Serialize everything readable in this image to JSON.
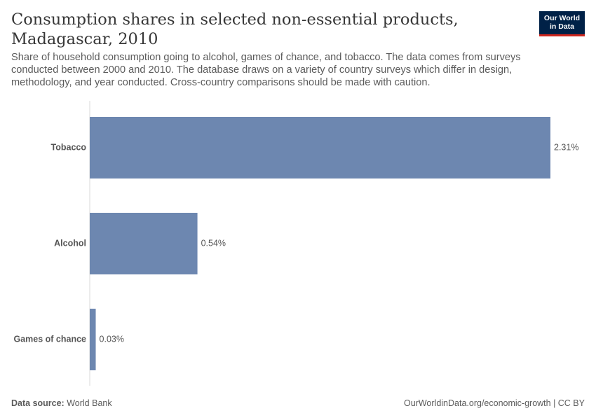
{
  "header": {
    "title": "Consumption shares in selected non-essential products, Madagascar, 2010",
    "subtitle": "Share of household consumption going to alcohol, games of chance, and tobacco. The data comes from surveys conducted between 2000 and 2010. The database draws on a variety of country surveys which differ in design, methodology, and year conducted. Cross-country comparisons should be made with caution.",
    "logo_line1": "Our World",
    "logo_line2": "in Data"
  },
  "footer": {
    "source_label": "Data source:",
    "source_value": "World Bank",
    "url": "OurWorldinData.org/economic-growth | CC BY"
  },
  "colors": {
    "bar": "#6d87b0",
    "axis": "#d8d8d8",
    "logo_bg": "#002147",
    "logo_accent": "#ce261e"
  },
  "chart_data": {
    "type": "bar",
    "orientation": "horizontal",
    "categories": [
      "Tobacco",
      "Alcohol",
      "Games of chance"
    ],
    "values": [
      2.31,
      0.54,
      0.03
    ],
    "value_labels": [
      "2.31%",
      "0.54%",
      "0.03%"
    ],
    "unit": "%",
    "xlim": [
      0,
      2.31
    ],
    "grid": false
  }
}
